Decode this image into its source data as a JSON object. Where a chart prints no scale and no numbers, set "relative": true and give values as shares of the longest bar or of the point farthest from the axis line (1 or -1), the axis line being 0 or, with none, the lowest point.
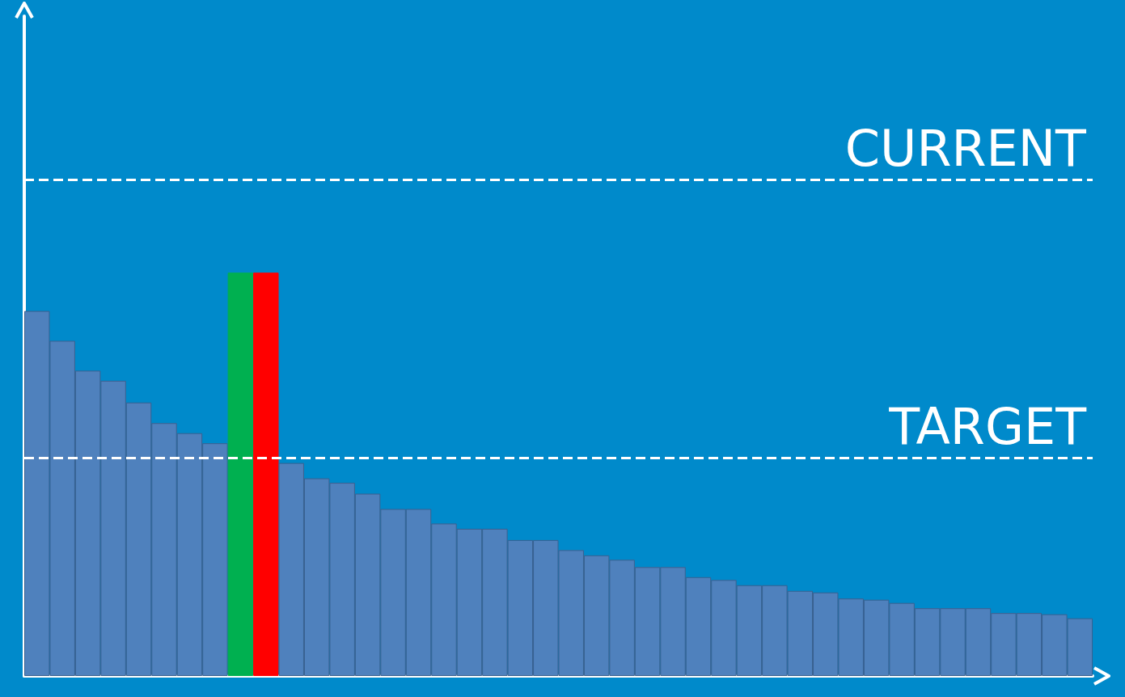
{
  "chart_data": {
    "type": "bar",
    "relative": true,
    "categories": [
      null,
      null,
      null,
      null,
      null,
      null,
      null,
      null,
      null,
      null,
      null,
      null,
      null,
      null,
      null,
      null,
      null,
      null,
      null,
      null,
      null,
      null,
      null,
      null,
      null,
      null,
      null,
      null,
      null,
      null,
      null,
      null,
      null,
      null,
      null,
      null,
      null,
      null,
      null,
      null,
      null,
      null
    ],
    "values": [
      0.905,
      0.831,
      0.757,
      0.732,
      0.678,
      0.627,
      0.602,
      0.577,
      1,
      1,
      0.528,
      0.49,
      0.479,
      0.452,
      0.414,
      0.414,
      0.378,
      0.365,
      0.365,
      0.337,
      0.337,
      0.312,
      0.299,
      0.288,
      0.27,
      0.27,
      0.245,
      0.238,
      0.225,
      0.225,
      0.211,
      0.207,
      0.192,
      0.189,
      0.181,
      0.168,
      0.168,
      0.168,
      0.156,
      0.156,
      0.153,
      0.143
    ],
    "colors": [
      "#4f81bd",
      "#4f81bd",
      "#4f81bd",
      "#4f81bd",
      "#4f81bd",
      "#4f81bd",
      "#4f81bd",
      "#4f81bd",
      "#00b050",
      "#ff0000",
      "#4f81bd",
      "#4f81bd",
      "#4f81bd",
      "#4f81bd",
      "#4f81bd",
      "#4f81bd",
      "#4f81bd",
      "#4f81bd",
      "#4f81bd",
      "#4f81bd",
      "#4f81bd",
      "#4f81bd",
      "#4f81bd",
      "#4f81bd",
      "#4f81bd",
      "#4f81bd",
      "#4f81bd",
      "#4f81bd",
      "#4f81bd",
      "#4f81bd",
      "#4f81bd",
      "#4f81bd",
      "#4f81bd",
      "#4f81bd",
      "#4f81bd",
      "#4f81bd",
      "#4f81bd",
      "#4f81bd",
      "#4f81bd",
      "#4f81bd",
      "#4f81bd",
      "#4f81bd"
    ],
    "ref_lines": [
      {
        "axis": "y",
        "value": 1.23,
        "label": "CURRENT",
        "color": "#ffffff",
        "line_style": "dashed"
      },
      {
        "axis": "y",
        "value": 0.544,
        "label": "TARGET",
        "color": "#ffffff",
        "line_style": "dashed"
      }
    ],
    "grid": false
  }
}
